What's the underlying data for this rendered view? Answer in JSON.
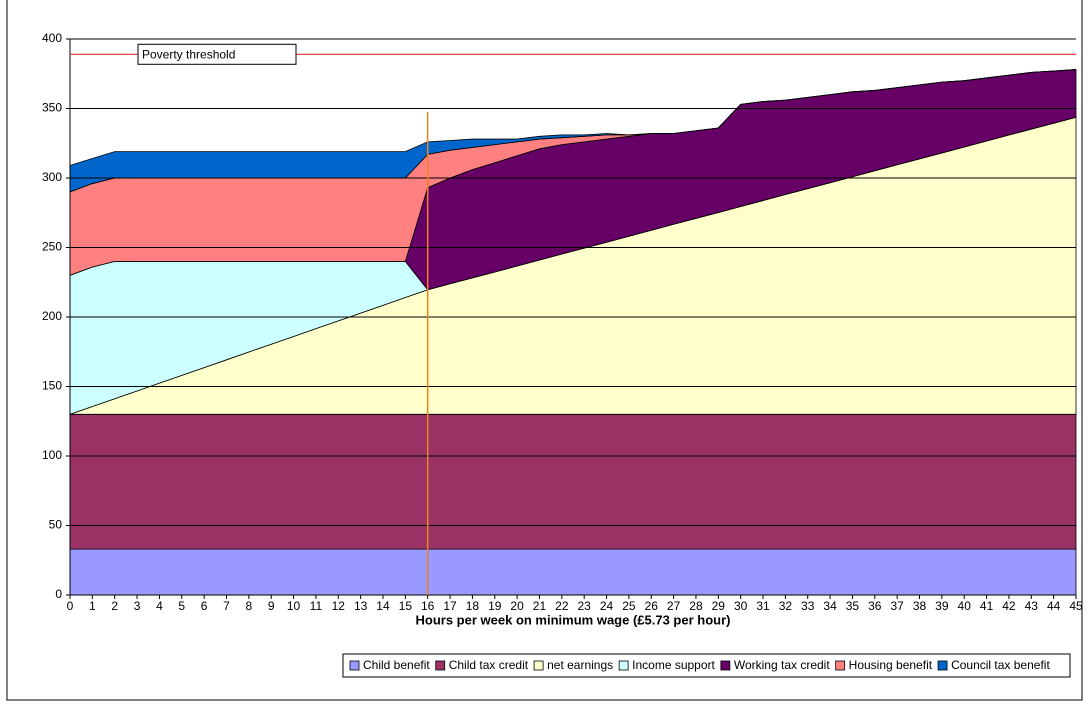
{
  "chart_data": {
    "type": "stacked-area",
    "x_label": "Hours per week on minimum wage (£5.73 per hour)",
    "x": [
      0,
      1,
      2,
      3,
      4,
      5,
      6,
      7,
      8,
      9,
      10,
      11,
      12,
      13,
      14,
      15,
      16,
      17,
      18,
      19,
      20,
      21,
      22,
      23,
      24,
      25,
      26,
      27,
      28,
      29,
      30,
      31,
      32,
      33,
      34,
      35,
      36,
      37,
      38,
      39,
      40,
      41,
      42,
      43,
      44,
      45
    ],
    "xlim": [
      0,
      45
    ],
    "xticks": [
      0,
      1,
      2,
      3,
      4,
      5,
      6,
      7,
      8,
      9,
      10,
      11,
      12,
      13,
      14,
      15,
      16,
      17,
      18,
      19,
      20,
      21,
      22,
      23,
      24,
      25,
      26,
      27,
      28,
      29,
      30,
      31,
      32,
      33,
      34,
      35,
      36,
      37,
      38,
      39,
      40,
      41,
      42,
      43,
      44,
      45
    ],
    "ylim": [
      0,
      400
    ],
    "yticks": [
      0,
      50,
      100,
      150,
      200,
      250,
      300,
      350,
      400
    ],
    "grid": true,
    "poverty_threshold": {
      "label": "Poverty threshold",
      "value": 389,
      "color": "#e03030"
    },
    "marker_x": {
      "value": 16,
      "color": "#f08020"
    },
    "series": [
      {
        "name": "Child benefit",
        "color": "#9999ff",
        "values": [
          33,
          33,
          33,
          33,
          33,
          33,
          33,
          33,
          33,
          33,
          33,
          33,
          33,
          33,
          33,
          33,
          33,
          33,
          33,
          33,
          33,
          33,
          33,
          33,
          33,
          33,
          33,
          33,
          33,
          33,
          33,
          33,
          33,
          33,
          33,
          33,
          33,
          33,
          33,
          33,
          33,
          33,
          33,
          33,
          33,
          33
        ]
      },
      {
        "name": "Child tax credit",
        "color": "#993366",
        "values": [
          97,
          97,
          97,
          97,
          97,
          97,
          97,
          97,
          97,
          97,
          97,
          97,
          97,
          97,
          97,
          97,
          97,
          97,
          97,
          97,
          97,
          97,
          97,
          97,
          97,
          97,
          97,
          97,
          97,
          97,
          97,
          97,
          97,
          97,
          97,
          97,
          97,
          97,
          97,
          97,
          97,
          97,
          97,
          97,
          97,
          97
        ]
      },
      {
        "name": "net earnings",
        "color": "#ffffcc",
        "values": [
          0,
          5.6,
          11.2,
          16.8,
          22.4,
          28,
          33.6,
          39.2,
          44.8,
          50.4,
          56,
          61.6,
          67.2,
          72.8,
          78.4,
          84,
          89.6,
          93.9,
          98.2,
          102.4,
          106.7,
          111,
          115.3,
          119.6,
          123.8,
          128.1,
          132.4,
          136.7,
          141,
          145.2,
          149.5,
          153.8,
          158.1,
          162.4,
          166.6,
          170.9,
          175.2,
          179.5,
          183.8,
          188,
          192.3,
          196.6,
          200.9,
          205.2,
          209.4,
          213.7
        ]
      },
      {
        "name": "Income support",
        "color": "#ccffff",
        "values": [
          100,
          100.4,
          98.8,
          93.2,
          87.6,
          82,
          76.4,
          70.8,
          65.2,
          59.6,
          54,
          48.4,
          42.8,
          37.2,
          31.6,
          26,
          0,
          0,
          0,
          0,
          0,
          0,
          0,
          0,
          0,
          0,
          0,
          0,
          0,
          0,
          0,
          0,
          0,
          0,
          0,
          0,
          0,
          0,
          0,
          0,
          0,
          0,
          0,
          0,
          0,
          0
        ]
      },
      {
        "name": "Working tax credit",
        "color": "#660066",
        "values": [
          0,
          0,
          0,
          0,
          0,
          0,
          0,
          0,
          0,
          0,
          0,
          0,
          0,
          0,
          0,
          0,
          73.4,
          76.1,
          77.8,
          78.6,
          79.3,
          80,
          78.7,
          76.4,
          74.2,
          71.9,
          69.6,
          65.3,
          63,
          60.8,
          73.5,
          71.2,
          67.9,
          65.6,
          63.4,
          61.1,
          57.8,
          55.5,
          53.2,
          51,
          47.7,
          45.4,
          43.1,
          40.8,
          37.6,
          34.3
        ]
      },
      {
        "name": "Housing benefit",
        "color": "#ff8080",
        "values": [
          60,
          60,
          60,
          60,
          60,
          60,
          60,
          60,
          60,
          60,
          60,
          60,
          60,
          60,
          60,
          60,
          24,
          20,
          16,
          13,
          10,
          7,
          5,
          4,
          3,
          1,
          0,
          0,
          0,
          0,
          0,
          0,
          0,
          0,
          0,
          0,
          0,
          0,
          0,
          0,
          0,
          0,
          0,
          0,
          0,
          0
        ]
      },
      {
        "name": "Council tax benefit",
        "color": "#0066cc",
        "values": [
          19,
          18,
          19,
          19,
          19,
          19,
          19,
          19,
          19,
          19,
          19,
          19,
          19,
          19,
          19,
          19,
          9,
          7,
          6,
          4,
          2,
          2,
          2,
          1,
          1,
          0,
          0,
          0,
          0,
          0,
          0,
          0,
          0,
          0,
          0,
          0,
          0,
          0,
          0,
          0,
          0,
          0,
          0,
          0,
          0,
          0
        ]
      }
    ]
  }
}
